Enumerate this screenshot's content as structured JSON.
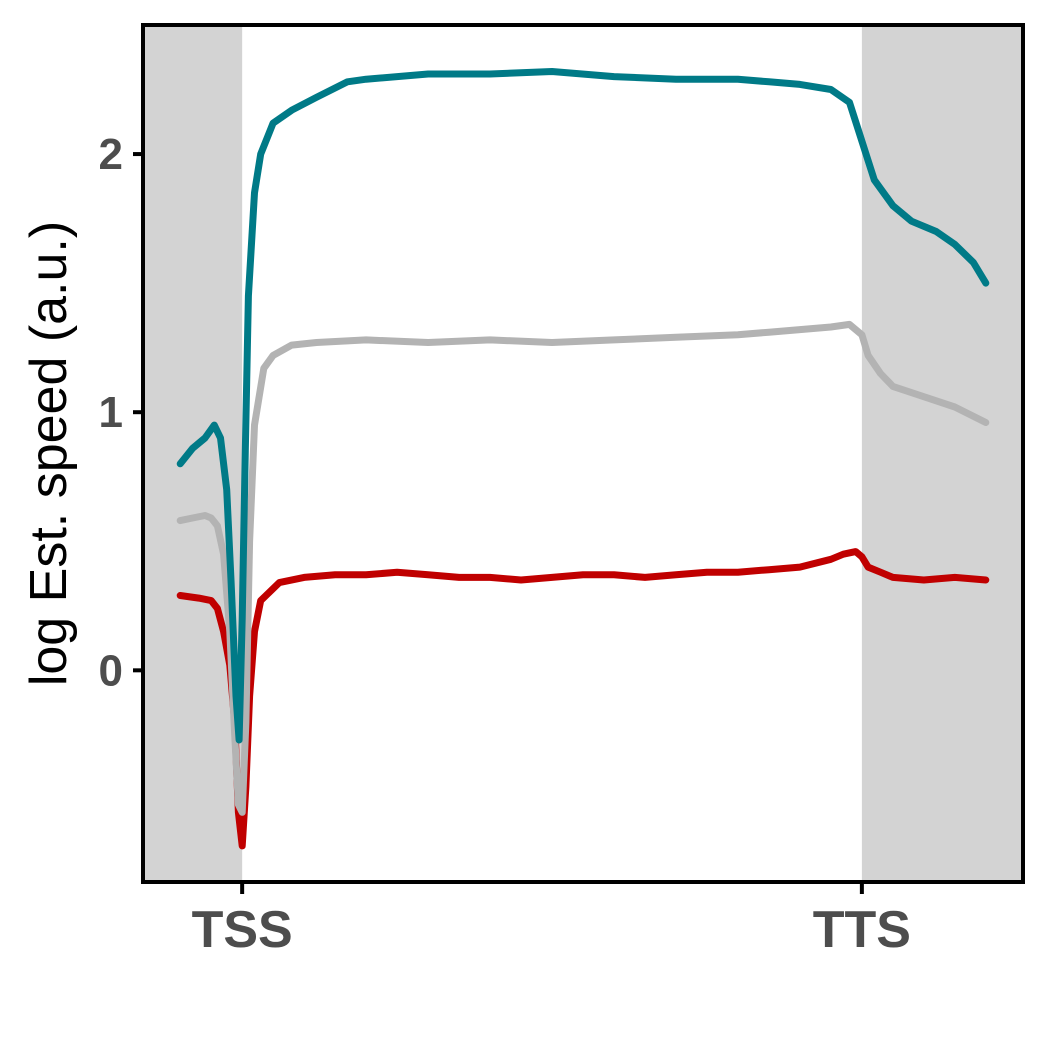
{
  "chart_data": {
    "type": "line",
    "title": "",
    "xlabel": "",
    "ylabel": "log Est. speed (a.u.)",
    "x_ticks": [
      "TSS",
      "TTS"
    ],
    "x_tick_positions": [
      0,
      1
    ],
    "xlim": [
      -0.16,
      1.26
    ],
    "ylim": [
      -0.82,
      2.5
    ],
    "y_ticks": [
      0,
      1,
      2
    ],
    "y_tick_labels": [
      "0",
      "1",
      "2"
    ],
    "grid": false,
    "legend": "none",
    "shaded_regions": [
      {
        "from": -0.16,
        "to": 0,
        "color": "#d3d3d3"
      },
      {
        "from": 1,
        "to": 1.26,
        "color": "#d3d3d3"
      }
    ],
    "series": [
      {
        "color": "#c00000",
        "x": [
          -0.1,
          -0.07,
          -0.05,
          -0.04,
          -0.03,
          -0.02,
          -0.012,
          -0.006,
          0,
          0.006,
          0.012,
          0.02,
          0.03,
          0.06,
          0.1,
          0.15,
          0.2,
          0.25,
          0.3,
          0.35,
          0.4,
          0.45,
          0.5,
          0.55,
          0.6,
          0.65,
          0.7,
          0.75,
          0.8,
          0.85,
          0.9,
          0.95,
          0.97,
          0.99,
          1.0,
          1.01,
          1.03,
          1.05,
          1.1,
          1.15,
          1.2
        ],
        "y": [
          0.29,
          0.28,
          0.27,
          0.24,
          0.15,
          0.02,
          -0.2,
          -0.55,
          -0.68,
          -0.45,
          -0.1,
          0.15,
          0.27,
          0.34,
          0.36,
          0.37,
          0.37,
          0.38,
          0.37,
          0.36,
          0.36,
          0.35,
          0.36,
          0.37,
          0.37,
          0.36,
          0.37,
          0.38,
          0.38,
          0.39,
          0.4,
          0.43,
          0.45,
          0.46,
          0.44,
          0.4,
          0.38,
          0.36,
          0.35,
          0.36,
          0.35
        ]
      },
      {
        "color": "#b3b3b3",
        "x": [
          -0.1,
          -0.08,
          -0.06,
          -0.05,
          -0.04,
          -0.03,
          -0.02,
          -0.012,
          -0.006,
          0,
          0.006,
          0.012,
          0.02,
          0.035,
          0.05,
          0.08,
          0.12,
          0.2,
          0.3,
          0.4,
          0.5,
          0.6,
          0.7,
          0.8,
          0.85,
          0.9,
          0.95,
          0.98,
          1.0,
          1.01,
          1.03,
          1.05,
          1.1,
          1.15,
          1.2
        ],
        "y": [
          0.58,
          0.59,
          0.6,
          0.59,
          0.56,
          0.45,
          0.15,
          -0.25,
          -0.52,
          -0.55,
          -0.2,
          0.5,
          0.95,
          1.17,
          1.22,
          1.26,
          1.27,
          1.28,
          1.27,
          1.28,
          1.27,
          1.28,
          1.29,
          1.3,
          1.31,
          1.32,
          1.33,
          1.34,
          1.3,
          1.22,
          1.15,
          1.1,
          1.06,
          1.02,
          0.96
        ]
      },
      {
        "color": "#007a87",
        "x": [
          -0.1,
          -0.08,
          -0.06,
          -0.045,
          -0.035,
          -0.025,
          -0.018,
          -0.01,
          -0.005,
          0,
          0.005,
          0.01,
          0.02,
          0.03,
          0.05,
          0.08,
          0.12,
          0.17,
          0.2,
          0.3,
          0.4,
          0.5,
          0.6,
          0.7,
          0.8,
          0.85,
          0.9,
          0.95,
          0.98,
          1.0,
          1.02,
          1.05,
          1.08,
          1.12,
          1.15,
          1.18,
          1.2
        ],
        "y": [
          0.8,
          0.86,
          0.9,
          0.95,
          0.9,
          0.7,
          0.35,
          -0.1,
          -0.27,
          0.2,
          0.85,
          1.45,
          1.85,
          2.0,
          2.12,
          2.17,
          2.22,
          2.28,
          2.29,
          2.31,
          2.31,
          2.32,
          2.3,
          2.29,
          2.29,
          2.28,
          2.27,
          2.25,
          2.2,
          2.05,
          1.9,
          1.8,
          1.74,
          1.7,
          1.65,
          1.58,
          1.5
        ]
      }
    ]
  }
}
